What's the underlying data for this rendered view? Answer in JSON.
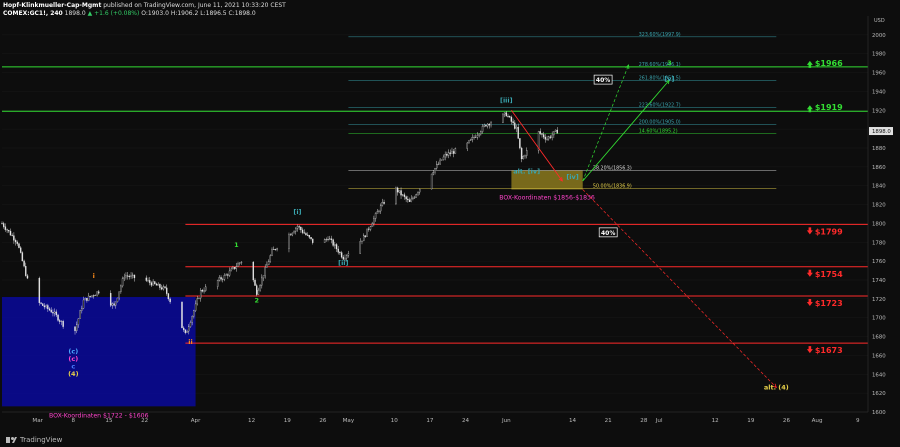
{
  "header": {
    "author": "Hopf-Klinkmueller-Cap-Mgmt",
    "published": "published on TradingView.com, June 11, 2021 10:33:20 CEST",
    "symbol": "COMEX:GC1!, 240",
    "last": "1898.0",
    "change": "▲ +1.6 (+0.08%)",
    "ohlc": "O:1903.0 H:1906.2 L:1896.5 C:1898.0"
  },
  "brand": "TradingView",
  "colors": {
    "background": "#0d0d0d",
    "candle": "#e8e8e8",
    "red": "#ff2a2a",
    "green": "#33dd33",
    "teal": "#3aa6b0",
    "yellow": "#e8d24a",
    "box_blue": "#0a0a8c",
    "box_gold": "#8c7a1e",
    "pink": "#ff44cc"
  },
  "chart_data": {
    "type": "candlestick",
    "y_axis": {
      "unit": "USD",
      "min": 1600,
      "max": 2020,
      "ticks": [
        1600,
        1620,
        1640,
        1660,
        1680,
        1700,
        1720,
        1740,
        1760,
        1780,
        1800,
        1820,
        1840,
        1860,
        1880,
        1900,
        1920,
        1940,
        1960,
        1980,
        2000
      ]
    },
    "x_axis": {
      "min": "2021-02-22",
      "max": "2021-08-11",
      "ticks": [
        {
          "label": "Mar",
          "date": "2021-03-01"
        },
        {
          "label": "8",
          "date": "2021-03-08"
        },
        {
          "label": "15",
          "date": "2021-03-15"
        },
        {
          "label": "22",
          "date": "2021-03-22"
        },
        {
          "label": "Apr",
          "date": "2021-04-01"
        },
        {
          "label": "12",
          "date": "2021-04-12"
        },
        {
          "label": "19",
          "date": "2021-04-19"
        },
        {
          "label": "26",
          "date": "2021-04-26"
        },
        {
          "label": "May",
          "date": "2021-05-01"
        },
        {
          "label": "10",
          "date": "2021-05-10"
        },
        {
          "label": "17",
          "date": "2021-05-17"
        },
        {
          "label": "24",
          "date": "2021-05-24"
        },
        {
          "label": "Jun",
          "date": "2021-06-01"
        },
        {
          "label": "14",
          "date": "2021-06-14"
        },
        {
          "label": "21",
          "date": "2021-06-21"
        },
        {
          "label": "28",
          "date": "2021-06-28"
        },
        {
          "label": "Jul",
          "date": "2021-07-01"
        },
        {
          "label": "12",
          "date": "2021-07-12"
        },
        {
          "label": "19",
          "date": "2021-07-19"
        },
        {
          "label": "26",
          "date": "2021-07-26"
        },
        {
          "label": "Aug",
          "date": "2021-08-01"
        },
        {
          "label": "9",
          "date": "2021-08-09"
        }
      ]
    },
    "price_path": [
      [
        "2021-02-22",
        1800
      ],
      [
        "2021-02-25",
        1780
      ],
      [
        "2021-02-28",
        1720
      ],
      [
        "2021-03-04",
        1706
      ],
      [
        "2021-03-08",
        1680
      ],
      [
        "2021-03-10",
        1718
      ],
      [
        "2021-03-13",
        1728
      ],
      [
        "2021-03-16",
        1712
      ],
      [
        "2021-03-18",
        1745
      ],
      [
        "2021-03-22",
        1740
      ],
      [
        "2021-03-26",
        1730
      ],
      [
        "2021-03-30",
        1682
      ],
      [
        "2021-04-02",
        1728
      ],
      [
        "2021-04-07",
        1745
      ],
      [
        "2021-04-11",
        1765
      ],
      [
        "2021-04-13",
        1727
      ],
      [
        "2021-04-16",
        1770
      ],
      [
        "2021-04-21",
        1797
      ],
      [
        "2021-04-25",
        1775
      ],
      [
        "2021-04-27",
        1785
      ],
      [
        "2021-04-30",
        1764
      ],
      [
        "2021-05-04",
        1785
      ],
      [
        "2021-05-07",
        1815
      ],
      [
        "2021-05-10",
        1838
      ],
      [
        "2021-05-13",
        1822
      ],
      [
        "2021-05-16",
        1845
      ],
      [
        "2021-05-20",
        1872
      ],
      [
        "2021-05-24",
        1882
      ],
      [
        "2021-05-28",
        1905
      ],
      [
        "2021-06-01",
        1916
      ],
      [
        "2021-06-03",
        1900
      ],
      [
        "2021-06-04",
        1868
      ],
      [
        "2021-06-06",
        1885
      ],
      [
        "2021-06-07",
        1898
      ],
      [
        "2021-06-09",
        1890
      ],
      [
        "2021-06-11",
        1898
      ]
    ],
    "current_price": 1898.0,
    "fib_levels": [
      {
        "label": "323.60%(1997.9)",
        "value": 1997.9,
        "color": "#3aa6b0"
      },
      {
        "label": "278.60%(1966.1)",
        "value": 1966.1,
        "color": "#3aa6b0"
      },
      {
        "label": "261.80%(1951.5)",
        "value": 1951.5,
        "color": "#3aa6b0"
      },
      {
        "label": "223.60%(1922.7)",
        "value": 1922.7,
        "color": "#3aa6b0"
      },
      {
        "label": "200.00%(1905.0)",
        "value": 1905.0,
        "color": "#3aa6b0"
      },
      {
        "label": "14.60%(1895.2)",
        "value": 1895.2,
        "color": "#33dd33"
      },
      {
        "label": "38.20%(1856.3)",
        "value": 1856.3,
        "color": "#dddddd"
      },
      {
        "label": "50.00%(1836.9)",
        "value": 1836.9,
        "color": "#e8d24a"
      }
    ],
    "horizontal_lines": [
      {
        "value": 1966,
        "color": "#33dd33",
        "label": "$1966"
      },
      {
        "value": 1919,
        "color": "#33dd33",
        "label": "$1919"
      },
      {
        "value": 1799,
        "color": "#ff2a2a",
        "label": "$1799"
      },
      {
        "value": 1754,
        "color": "#ff2a2a",
        "label": "$1754"
      },
      {
        "value": 1723,
        "color": "#ff2a2a",
        "label": "$1723"
      },
      {
        "value": 1673,
        "color": "#ff2a2a",
        "label": "$1673"
      }
    ],
    "boxes": [
      {
        "from": "2021-02-22",
        "to": "2021-04-01",
        "top": 1722,
        "bottom": 1606,
        "color": "#0a0a8c",
        "label": "BOX-Koordinaten $1722 - $1606"
      },
      {
        "from": "2021-06-02",
        "to": "2021-06-16",
        "top": 1856,
        "bottom": 1836,
        "color": "#8c7a1e",
        "label": "BOX-Koordinaten $1856-$1836"
      }
    ],
    "wave_labels": [
      {
        "text": "(c)",
        "date": "2021-03-08",
        "price": 1662,
        "color": "#4aa8ff"
      },
      {
        "text": "(c)",
        "date": "2021-03-08",
        "price": 1654,
        "color": "#ff44cc"
      },
      {
        "text": "c",
        "date": "2021-03-08",
        "price": 1646,
        "color": "#4a7dff"
      },
      {
        "text": "(4)",
        "date": "2021-03-08",
        "price": 1638,
        "color": "#e8d24a"
      },
      {
        "text": "i",
        "date": "2021-03-12",
        "price": 1742,
        "color": "#ff8c1a"
      },
      {
        "text": "ii",
        "date": "2021-03-31",
        "price": 1672,
        "color": "#ff8c1a"
      },
      {
        "text": "1",
        "date": "2021-04-09",
        "price": 1775,
        "color": "#33dd33"
      },
      {
        "text": "2",
        "date": "2021-04-13",
        "price": 1716,
        "color": "#33dd33"
      },
      {
        "text": "[i]",
        "date": "2021-04-21",
        "price": 1810,
        "color": "#3aa6b0"
      },
      {
        "text": "[ii]",
        "date": "2021-04-30",
        "price": 1756,
        "color": "#3aa6b0"
      },
      {
        "text": "[iii]",
        "date": "2021-06-01",
        "price": 1928,
        "color": "#3aa6b0"
      },
      {
        "text": "alt. [iv]",
        "date": "2021-06-05",
        "price": 1853,
        "color": "#3aa6b0"
      },
      {
        "text": "[iv]",
        "date": "2021-06-14",
        "price": 1847,
        "color": "#3aa6b0"
      },
      {
        "text": "3",
        "date": "2021-07-03",
        "price": 1968,
        "color": "#33dd33"
      },
      {
        "text": "[v]",
        "date": "2021-07-03",
        "price": 1951,
        "color": "#3aa6b0"
      },
      {
        "text": "alt. (4)",
        "date": "2021-07-24",
        "price": 1624,
        "color": "#e8d24a"
      }
    ],
    "projections": [
      {
        "from": [
          "2021-06-02",
          1920
        ],
        "to": [
          "2021-06-12",
          1845
        ],
        "color": "#ff2a2a",
        "style": "solid"
      },
      {
        "from": [
          "2021-06-16",
          1845
        ],
        "to": [
          "2021-07-03",
          1952
        ],
        "color": "#33dd33",
        "style": "solid"
      },
      {
        "from": [
          "2021-06-16",
          1845
        ],
        "to": [
          "2021-06-25",
          1968
        ],
        "color": "#33dd33",
        "style": "dashed"
      },
      {
        "from": [
          "2021-06-16",
          1836
        ],
        "to": [
          "2021-07-24",
          1626
        ],
        "color": "#ff2a2a",
        "style": "dashed"
      }
    ],
    "percent_badges": [
      {
        "text": "40%",
        "date": "2021-06-20",
        "price": 1952
      },
      {
        "text": "40%",
        "date": "2021-06-21",
        "price": 1790
      }
    ]
  }
}
